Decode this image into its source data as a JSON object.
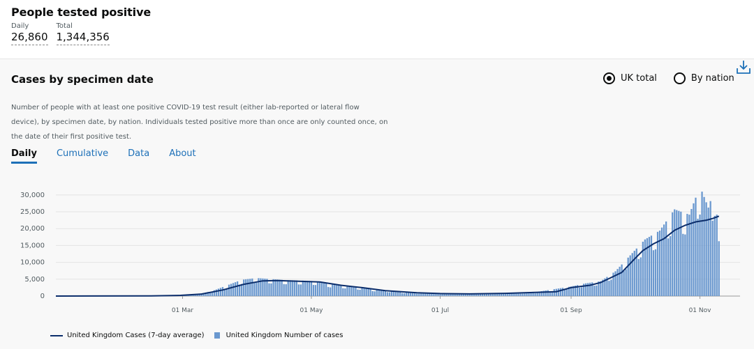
{
  "headline": {
    "title": "People tested positive",
    "daily_label": "Daily",
    "daily_value": "26,860",
    "total_label": "Total",
    "total_value": "1,344,356"
  },
  "card": {
    "title": "Cases by specimen date",
    "description": "Number of people with at least one positive COVID-19 test result (either lab-reported or lateral flow device), by specimen date, by nation. Individuals tested positive more than once are only counted once, on the date of their first positive test.",
    "download_icon": "download-icon",
    "radios": [
      {
        "label": "UK total",
        "selected": true
      },
      {
        "label": "By nation",
        "selected": false
      }
    ],
    "tabs": [
      {
        "label": "Daily",
        "active": true
      },
      {
        "label": "Cumulative",
        "active": false
      },
      {
        "label": "Data",
        "active": false
      },
      {
        "label": "About",
        "active": false
      }
    ],
    "legend": {
      "line_label": "United Kingdom Cases (7-day average)",
      "bar_label": "United Kingdom Number of cases"
    }
  },
  "colors": {
    "accent": "#1d70b8",
    "bar": "#6a98cf",
    "line": "#0b2d6b"
  },
  "chart_data": {
    "type": "bar",
    "x_ticks": [
      "01 Mar",
      "01 May",
      "01 Jul",
      "01 Sep",
      "01 Nov"
    ],
    "y_ticks": [
      "30,000",
      "25,000",
      "20,000",
      "15,000",
      "10,000",
      "5,000",
      "0"
    ],
    "ylim": [
      0,
      31000
    ],
    "x_start": "2020-01-01",
    "x_end": "2020-11-20",
    "series": [
      {
        "name": "United Kingdom Cases (7-day average)",
        "type": "line",
        "points": [
          [
            "2020-01-01",
            0
          ],
          [
            "2020-02-15",
            50
          ],
          [
            "2020-02-29",
            200
          ],
          [
            "2020-03-10",
            600
          ],
          [
            "2020-03-20",
            1800
          ],
          [
            "2020-03-30",
            3500
          ],
          [
            "2020-04-08",
            4500
          ],
          [
            "2020-04-15",
            4600
          ],
          [
            "2020-04-25",
            4400
          ],
          [
            "2020-05-05",
            4200
          ],
          [
            "2020-05-15",
            3200
          ],
          [
            "2020-05-25",
            2500
          ],
          [
            "2020-06-05",
            1600
          ],
          [
            "2020-06-20",
            1000
          ],
          [
            "2020-07-01",
            750
          ],
          [
            "2020-07-15",
            650
          ],
          [
            "2020-08-01",
            800
          ],
          [
            "2020-08-15",
            1100
          ],
          [
            "2020-08-25",
            1300
          ],
          [
            "2020-09-01",
            2500
          ],
          [
            "2020-09-10",
            3200
          ],
          [
            "2020-09-15",
            4000
          ],
          [
            "2020-09-20",
            5500
          ],
          [
            "2020-09-25",
            7000
          ],
          [
            "2020-10-01",
            11000
          ],
          [
            "2020-10-05",
            13500
          ],
          [
            "2020-10-10",
            15500
          ],
          [
            "2020-10-15",
            17000
          ],
          [
            "2020-10-20",
            19500
          ],
          [
            "2020-10-25",
            21000
          ],
          [
            "2020-10-30",
            22000
          ],
          [
            "2020-11-04",
            22500
          ],
          [
            "2020-11-07",
            23000
          ],
          [
            "2020-11-10",
            23700
          ]
        ]
      },
      {
        "name": "United Kingdom Number of cases",
        "type": "bar",
        "values": [
          [
            "2020-03-01",
            200
          ],
          [
            "2020-03-08",
            500
          ],
          [
            "2020-03-15",
            1400
          ],
          [
            "2020-03-22",
            3000
          ],
          [
            "2020-03-29",
            4600
          ],
          [
            "2020-04-05",
            5100
          ],
          [
            "2020-04-12",
            4800
          ],
          [
            "2020-04-19",
            4500
          ],
          [
            "2020-04-26",
            4400
          ],
          [
            "2020-05-03",
            4200
          ],
          [
            "2020-05-10",
            3300
          ],
          [
            "2020-05-17",
            2900
          ],
          [
            "2020-05-24",
            2400
          ],
          [
            "2020-05-31",
            1800
          ],
          [
            "2020-06-14",
            1100
          ],
          [
            "2020-07-01",
            700
          ],
          [
            "2020-07-15",
            650
          ],
          [
            "2020-08-01",
            800
          ],
          [
            "2020-08-15",
            1100
          ],
          [
            "2020-09-01",
            2700
          ],
          [
            "2020-09-08",
            3600
          ],
          [
            "2020-09-15",
            4200
          ],
          [
            "2020-09-22",
            7000
          ],
          [
            "2020-09-29",
            11500
          ],
          [
            "2020-10-06",
            16000
          ],
          [
            "2020-10-13",
            18500
          ],
          [
            "2020-10-20",
            24500
          ],
          [
            "2020-10-27",
            23000
          ],
          [
            "2020-11-01",
            31000
          ],
          [
            "2020-11-05",
            25000
          ],
          [
            "2020-11-08",
            30500
          ],
          [
            "2020-11-10",
            15500
          ]
        ]
      }
    ]
  }
}
